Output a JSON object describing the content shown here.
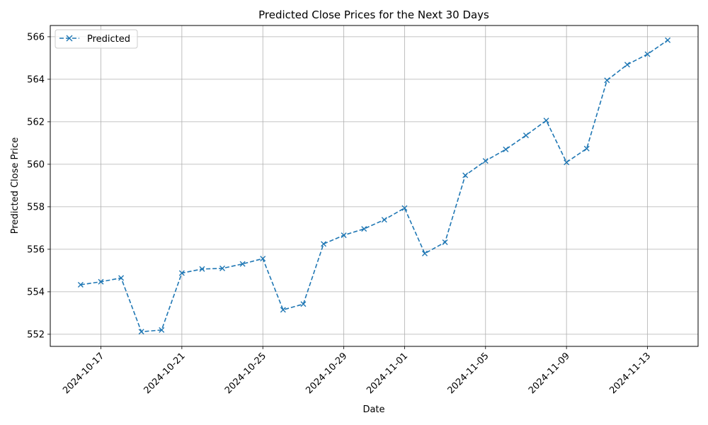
{
  "chart_data": {
    "type": "line",
    "title": "Predicted Close Prices for the Next 30 Days",
    "xlabel": "Date",
    "ylabel": "Predicted Close Price",
    "x": [
      "2024-10-16",
      "2024-10-17",
      "2024-10-18",
      "2024-10-19",
      "2024-10-20",
      "2024-10-21",
      "2024-10-22",
      "2024-10-23",
      "2024-10-24",
      "2024-10-25",
      "2024-10-26",
      "2024-10-27",
      "2024-10-28",
      "2024-10-29",
      "2024-10-30",
      "2024-10-31",
      "2024-11-01",
      "2024-11-02",
      "2024-11-03",
      "2024-11-04",
      "2024-11-05",
      "2024-11-06",
      "2024-11-07",
      "2024-11-08",
      "2024-11-09",
      "2024-11-10",
      "2024-11-11",
      "2024-11-12",
      "2024-11-13",
      "2024-11-14"
    ],
    "series": [
      {
        "name": "Predicted",
        "color": "#1f77b4",
        "line_style": "dashed",
        "marker": "x",
        "values": [
          554.33,
          554.47,
          554.65,
          552.12,
          552.2,
          554.88,
          555.07,
          555.1,
          555.31,
          555.56,
          553.15,
          553.42,
          556.25,
          556.66,
          556.96,
          557.39,
          557.94,
          555.8,
          556.33,
          559.48,
          560.16,
          560.7,
          561.36,
          562.06,
          560.09,
          560.74,
          563.95,
          564.69,
          565.18,
          565.84
        ]
      }
    ],
    "x_ticks": [
      "2024-10-17",
      "2024-10-21",
      "2024-10-25",
      "2024-10-29",
      "2024-11-01",
      "2024-11-05",
      "2024-11-09",
      "2024-11-13"
    ],
    "y_ticks": [
      552,
      554,
      556,
      558,
      560,
      562,
      564,
      566
    ],
    "ylim": [
      551.43,
      566.53
    ],
    "xlim": [
      "2024-10-14T12:00",
      "2024-11-15T12:00"
    ],
    "grid": true,
    "legend": "top-left"
  }
}
